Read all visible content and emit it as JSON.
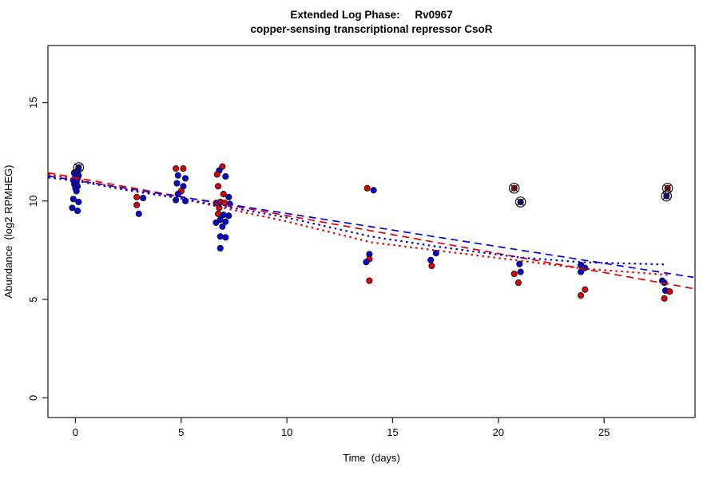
{
  "chart_data": {
    "type": "scatter",
    "title": "Extended Log Phase:     Rv0967",
    "subtitle": "copper-sensing transcriptional repressor CsoR",
    "xlabel": "Time  (days)",
    "ylabel": "Abundance  (log2 RPMHEG)",
    "xlim": [
      -1.3,
      29.3
    ],
    "ylim": [
      -1.0,
      17.9
    ],
    "xticks": [
      0,
      5,
      10,
      15,
      20,
      25
    ],
    "yticks": [
      0,
      5,
      10,
      15
    ],
    "grid": false,
    "legend": "none",
    "colors": {
      "red_series": "#e10000",
      "blue_series": "#0000e1",
      "point_outline": "#1a1a1a",
      "flag_marker": "#111111",
      "axis": "#2a2a2a"
    },
    "points": [
      {
        "day": 0.15,
        "value": 11.7,
        "series": "blue",
        "flagged": true
      },
      {
        "day": 0.1,
        "value": 11.55,
        "series": "blue"
      },
      {
        "day": -0.05,
        "value": 11.45,
        "series": "red"
      },
      {
        "day": -0.05,
        "value": 11.4,
        "series": "blue"
      },
      {
        "day": 0.15,
        "value": 11.3,
        "series": "blue"
      },
      {
        "day": 0.0,
        "value": 11.25,
        "series": "blue"
      },
      {
        "day": 0.1,
        "value": 11.15,
        "series": "blue"
      },
      {
        "day": -0.1,
        "value": 11.05,
        "series": "blue"
      },
      {
        "day": 0.05,
        "value": 10.95,
        "series": "blue"
      },
      {
        "day": -0.05,
        "value": 10.85,
        "series": "blue"
      },
      {
        "day": 0.1,
        "value": 10.75,
        "series": "blue"
      },
      {
        "day": 0.0,
        "value": 10.65,
        "series": "blue"
      },
      {
        "day": 0.05,
        "value": 10.5,
        "series": "blue"
      },
      {
        "day": -0.1,
        "value": 10.1,
        "series": "blue"
      },
      {
        "day": 0.15,
        "value": 9.95,
        "series": "blue"
      },
      {
        "day": -0.15,
        "value": 9.65,
        "series": "blue"
      },
      {
        "day": 0.1,
        "value": 9.5,
        "series": "blue"
      },
      {
        "day": 2.9,
        "value": 10.2,
        "series": "red"
      },
      {
        "day": 3.2,
        "value": 10.15,
        "series": "blue"
      },
      {
        "day": 2.9,
        "value": 9.8,
        "series": "red"
      },
      {
        "day": 3.0,
        "value": 9.35,
        "series": "blue"
      },
      {
        "day": 4.75,
        "value": 11.65,
        "series": "red"
      },
      {
        "day": 5.1,
        "value": 11.65,
        "series": "red"
      },
      {
        "day": 4.85,
        "value": 11.3,
        "series": "blue"
      },
      {
        "day": 5.2,
        "value": 11.15,
        "series": "blue"
      },
      {
        "day": 4.8,
        "value": 10.9,
        "series": "blue"
      },
      {
        "day": 5.1,
        "value": 10.75,
        "series": "blue"
      },
      {
        "day": 5.0,
        "value": 10.5,
        "series": "red"
      },
      {
        "day": 4.85,
        "value": 10.35,
        "series": "blue"
      },
      {
        "day": 4.75,
        "value": 10.05,
        "series": "blue"
      },
      {
        "day": 5.2,
        "value": 10.0,
        "series": "blue"
      },
      {
        "day": 6.95,
        "value": 11.75,
        "series": "red"
      },
      {
        "day": 6.8,
        "value": 11.55,
        "series": "blue"
      },
      {
        "day": 6.7,
        "value": 11.35,
        "series": "red"
      },
      {
        "day": 7.1,
        "value": 11.25,
        "series": "blue"
      },
      {
        "day": 6.75,
        "value": 10.75,
        "series": "red"
      },
      {
        "day": 7.0,
        "value": 10.35,
        "series": "red"
      },
      {
        "day": 7.25,
        "value": 10.2,
        "series": "blue"
      },
      {
        "day": 6.85,
        "value": 9.95,
        "series": "red"
      },
      {
        "day": 6.65,
        "value": 9.9,
        "series": "red"
      },
      {
        "day": 7.05,
        "value": 9.9,
        "series": "red"
      },
      {
        "day": 7.3,
        "value": 9.85,
        "series": "blue"
      },
      {
        "day": 6.8,
        "value": 9.65,
        "series": "red"
      },
      {
        "day": 6.75,
        "value": 9.35,
        "series": "red"
      },
      {
        "day": 7.0,
        "value": 9.3,
        "series": "blue"
      },
      {
        "day": 7.25,
        "value": 9.25,
        "series": "blue"
      },
      {
        "day": 6.85,
        "value": 9.05,
        "series": "blue"
      },
      {
        "day": 7.1,
        "value": 8.95,
        "series": "blue"
      },
      {
        "day": 6.65,
        "value": 8.9,
        "series": "blue"
      },
      {
        "day": 6.95,
        "value": 8.7,
        "series": "blue"
      },
      {
        "day": 6.85,
        "value": 8.2,
        "series": "blue"
      },
      {
        "day": 7.1,
        "value": 8.15,
        "series": "blue"
      },
      {
        "day": 6.85,
        "value": 7.6,
        "series": "blue"
      },
      {
        "day": 13.8,
        "value": 10.65,
        "series": "red"
      },
      {
        "day": 14.1,
        "value": 10.55,
        "series": "blue"
      },
      {
        "day": 13.9,
        "value": 7.3,
        "series": "blue"
      },
      {
        "day": 13.9,
        "value": 7.05,
        "series": "red"
      },
      {
        "day": 13.75,
        "value": 6.9,
        "series": "blue"
      },
      {
        "day": 13.9,
        "value": 5.95,
        "series": "red"
      },
      {
        "day": 17.05,
        "value": 7.35,
        "series": "blue"
      },
      {
        "day": 16.8,
        "value": 7.0,
        "series": "blue"
      },
      {
        "day": 16.85,
        "value": 6.7,
        "series": "red"
      },
      {
        "day": 20.75,
        "value": 10.65,
        "series": "red",
        "flagged": true
      },
      {
        "day": 21.05,
        "value": 9.95,
        "series": "blue",
        "flagged": true
      },
      {
        "day": 21.0,
        "value": 6.8,
        "series": "blue"
      },
      {
        "day": 21.05,
        "value": 6.4,
        "series": "blue"
      },
      {
        "day": 20.75,
        "value": 6.3,
        "series": "red"
      },
      {
        "day": 20.95,
        "value": 5.85,
        "series": "red"
      },
      {
        "day": 23.9,
        "value": 6.75,
        "series": "blue"
      },
      {
        "day": 24.1,
        "value": 6.6,
        "series": "blue"
      },
      {
        "day": 23.9,
        "value": 6.4,
        "series": "blue"
      },
      {
        "day": 24.1,
        "value": 5.5,
        "series": "red"
      },
      {
        "day": 23.9,
        "value": 5.2,
        "series": "red"
      },
      {
        "day": 28.0,
        "value": 10.65,
        "series": "red",
        "flagged": true
      },
      {
        "day": 27.95,
        "value": 10.25,
        "series": "blue",
        "flagged": true
      },
      {
        "day": 27.75,
        "value": 5.95,
        "series": "blue"
      },
      {
        "day": 27.85,
        "value": 5.85,
        "series": "blue"
      },
      {
        "day": 27.9,
        "value": 5.45,
        "series": "blue"
      },
      {
        "day": 28.1,
        "value": 5.4,
        "series": "red"
      },
      {
        "day": 27.85,
        "value": 5.05,
        "series": "red"
      }
    ],
    "lines": [
      {
        "name": "red-linear-fit",
        "series": "red",
        "style": "dashed",
        "x": [
          -1.28,
          29.23
        ],
        "y": [
          11.43,
          5.55
        ]
      },
      {
        "name": "blue-linear-fit",
        "series": "blue",
        "style": "dashed",
        "x": [
          -1.28,
          29.23
        ],
        "y": [
          11.27,
          6.12
        ]
      },
      {
        "name": "red-loess-fit",
        "series": "red",
        "style": "dotted",
        "x": [
          -1.28,
          0,
          2.5,
          5,
          7,
          10,
          14,
          17,
          21,
          24,
          28.1
        ],
        "y": [
          11.35,
          11.11,
          10.58,
          10.13,
          9.65,
          8.96,
          7.9,
          7.5,
          6.97,
          6.57,
          6.24
        ]
      },
      {
        "name": "blue-loess-fit",
        "series": "blue",
        "style": "dotted",
        "x": [
          -1.28,
          0,
          2.5,
          5,
          7,
          10,
          14,
          17,
          21,
          24,
          28
        ],
        "y": [
          11.19,
          11.03,
          10.54,
          10.13,
          9.73,
          9.16,
          8.19,
          7.7,
          7.13,
          6.89,
          6.77
        ]
      }
    ]
  }
}
